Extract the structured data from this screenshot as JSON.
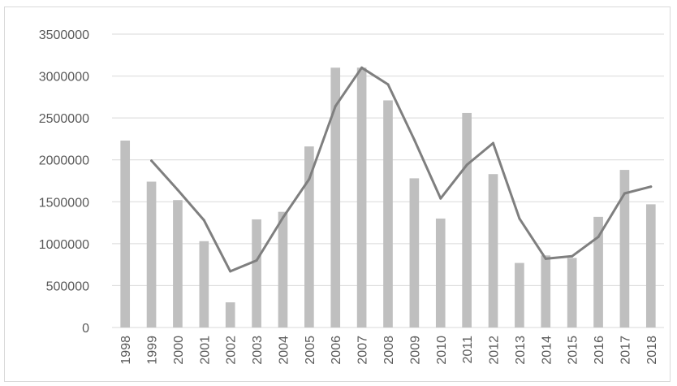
{
  "chart_data": {
    "type": "bar",
    "categories": [
      "1998",
      "1999",
      "2000",
      "2001",
      "2002",
      "2003",
      "2004",
      "2005",
      "2006",
      "2007",
      "2008",
      "2009",
      "2010",
      "2011",
      "2012",
      "2013",
      "2014",
      "2015",
      "2016",
      "2017",
      "2018"
    ],
    "series": [
      {
        "type": "bar",
        "values": [
          2230000,
          1740000,
          1520000,
          1030000,
          300000,
          1290000,
          1380000,
          2160000,
          3100000,
          3100000,
          2710000,
          1780000,
          1300000,
          2560000,
          1830000,
          770000,
          860000,
          830000,
          1320000,
          1880000,
          1470000
        ]
      },
      {
        "type": "line",
        "values": [
          null,
          1990000,
          1640000,
          1280000,
          670000,
          800000,
          1310000,
          1770000,
          2640000,
          3100000,
          2900000,
          2240000,
          1540000,
          1940000,
          2200000,
          1300000,
          820000,
          850000,
          1080000,
          1600000,
          1680000
        ]
      }
    ],
    "ylim": [
      0,
      3500000
    ],
    "yticks": [
      "0",
      "500000",
      "1000000",
      "1500000",
      "2000000",
      "2500000",
      "3000000",
      "3500000"
    ],
    "grid": true,
    "colors": {
      "bar": "#bfbfbf",
      "line": "#7f7f7f",
      "grid": "#d9d9d9",
      "text": "#595959"
    }
  }
}
